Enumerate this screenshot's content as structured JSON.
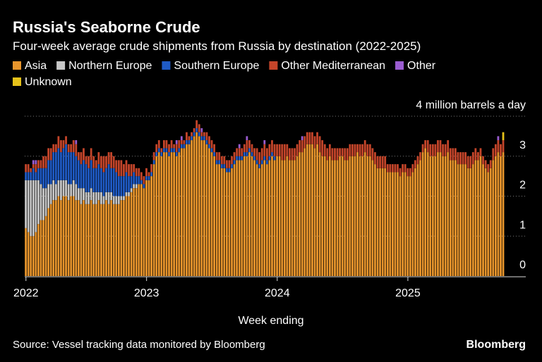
{
  "chart_data": {
    "type": "stacked_bar",
    "title": "Russia's Seaborne Crude",
    "subtitle": "Four-week average crude shipments from Russia by destination (2022-2025)",
    "x_label": "Week ending",
    "source": "Source: Vessel tracking data monitored by Bloomberg",
    "brand": "Bloomberg",
    "ylim": [
      0,
      4
    ],
    "yticks": [
      0,
      1,
      2,
      3,
      {
        "value": 4,
        "label": "4 million barrels a day"
      }
    ],
    "grid": true,
    "categories": [
      "2022",
      null,
      null,
      null,
      null,
      null,
      null,
      null,
      null,
      null,
      null,
      null,
      null,
      null,
      null,
      null,
      null,
      null,
      null,
      null,
      null,
      null,
      null,
      null,
      null,
      null,
      null,
      null,
      null,
      null,
      null,
      null,
      null,
      null,
      null,
      null,
      null,
      null,
      null,
      null,
      null,
      null,
      null,
      null,
      null,
      null,
      null,
      null,
      "2023",
      null,
      null,
      null,
      null,
      null,
      null,
      null,
      null,
      null,
      null,
      null,
      null,
      null,
      null,
      null,
      null,
      null,
      null,
      null,
      null,
      null,
      null,
      null,
      null,
      null,
      null,
      null,
      null,
      null,
      null,
      null,
      null,
      null,
      null,
      null,
      null,
      null,
      null,
      null,
      null,
      null,
      null,
      null,
      null,
      null,
      null,
      null,
      null,
      null,
      null,
      null,
      "2024",
      null,
      null,
      null,
      null,
      null,
      null,
      null,
      null,
      null,
      null,
      null,
      null,
      null,
      null,
      null,
      null,
      null,
      null,
      null,
      null,
      null,
      null,
      null,
      null,
      null,
      null,
      null,
      null,
      null,
      null,
      null,
      null,
      null,
      null,
      null,
      null,
      null,
      null,
      null,
      null,
      null,
      null,
      null,
      null,
      null,
      null,
      null,
      null,
      null,
      null,
      null,
      "2025",
      null,
      null,
      null,
      null,
      null,
      null,
      null,
      null,
      null,
      null,
      null,
      null,
      null,
      null,
      null,
      null,
      null,
      null,
      null,
      null,
      null,
      null,
      null,
      null,
      null,
      null,
      null,
      null,
      null,
      null,
      null,
      null,
      null,
      null,
      null,
      null,
      null,
      null
    ],
    "series": [
      {
        "name": "Asia",
        "color": "#e8952c",
        "values": [
          1.2,
          1.1,
          1.0,
          1.0,
          1.1,
          1.3,
          1.4,
          1.4,
          1.5,
          1.7,
          1.8,
          1.9,
          1.9,
          2.0,
          1.9,
          2.0,
          2.0,
          1.9,
          2.0,
          2.0,
          1.9,
          1.9,
          1.8,
          1.9,
          1.8,
          1.8,
          1.9,
          1.8,
          1.8,
          1.9,
          1.8,
          1.8,
          1.9,
          1.8,
          1.9,
          1.8,
          1.8,
          1.8,
          1.9,
          1.9,
          2.0,
          2.0,
          2.1,
          2.2,
          2.2,
          2.3,
          2.3,
          2.2,
          2.4,
          2.4,
          2.5,
          2.8,
          3.0,
          3.1,
          3.0,
          3.1,
          3.1,
          3.0,
          3.1,
          3.1,
          3.0,
          3.1,
          3.2,
          3.2,
          3.3,
          3.3,
          3.4,
          3.5,
          3.6,
          3.5,
          3.4,
          3.4,
          3.3,
          3.2,
          3.1,
          3.0,
          2.8,
          2.8,
          2.7,
          2.7,
          2.6,
          2.6,
          2.7,
          2.8,
          2.9,
          2.9,
          2.9,
          3.0,
          3.0,
          3.1,
          3.0,
          2.9,
          2.8,
          2.7,
          2.8,
          2.9,
          2.8,
          2.9,
          3.0,
          2.9,
          3.0,
          3.0,
          2.9,
          2.9,
          3.0,
          2.9,
          2.9,
          2.9,
          3.0,
          3.1,
          3.1,
          3.2,
          3.3,
          3.3,
          3.3,
          3.2,
          3.3,
          3.1,
          3.0,
          3.0,
          2.9,
          3.0,
          2.9,
          2.9,
          2.9,
          3.0,
          3.0,
          2.9,
          2.9,
          3.0,
          3.0,
          3.0,
          3.1,
          3.0,
          3.0,
          3.1,
          3.0,
          3.0,
          2.9,
          2.8,
          2.7,
          2.7,
          2.7,
          2.7,
          2.6,
          2.6,
          2.6,
          2.6,
          2.6,
          2.5,
          2.6,
          2.6,
          2.5,
          2.5,
          2.6,
          2.7,
          2.8,
          2.9,
          3.1,
          3.2,
          3.1,
          3.0,
          3.0,
          3.0,
          3.1,
          3.1,
          3.0,
          3.0,
          3.1,
          2.9,
          2.9,
          2.9,
          2.8,
          2.8,
          2.8,
          2.8,
          2.7,
          2.7,
          2.8,
          2.9,
          2.9,
          3.0,
          2.8,
          2.7,
          2.6,
          2.7,
          2.9,
          3.0,
          3.1,
          3.0,
          3.1
        ]
      },
      {
        "name": "Northern Europe",
        "color": "#c8c8c8",
        "values": [
          1.2,
          1.3,
          1.4,
          1.4,
          1.3,
          1.1,
          0.9,
          0.8,
          0.7,
          0.6,
          0.5,
          0.5,
          0.4,
          0.4,
          0.5,
          0.4,
          0.4,
          0.4,
          0.3,
          0.4,
          0.4,
          0.3,
          0.4,
          0.3,
          0.3,
          0.3,
          0.3,
          0.3,
          0.3,
          0.2,
          0.3,
          0.2,
          0.2,
          0.3,
          0.2,
          0.2,
          0.2,
          0.2,
          0.1,
          0.1,
          0.1,
          0.1,
          0.1,
          0.1,
          0.1,
          0,
          0,
          0,
          0,
          0,
          0,
          0,
          0,
          0,
          0,
          0,
          0,
          0,
          0,
          0,
          0,
          0,
          0,
          0,
          0,
          0,
          0,
          0,
          0,
          0,
          0,
          0,
          0,
          0,
          0,
          0,
          0,
          0,
          0,
          0,
          0,
          0,
          0,
          0,
          0,
          0,
          0,
          0,
          0,
          0,
          0,
          0,
          0,
          0,
          0,
          0,
          0,
          0,
          0,
          0,
          0,
          0,
          0,
          0,
          0,
          0,
          0,
          0,
          0,
          0,
          0,
          0,
          0,
          0,
          0,
          0,
          0,
          0,
          0,
          0,
          0,
          0,
          0,
          0,
          0,
          0,
          0,
          0,
          0,
          0,
          0,
          0,
          0,
          0,
          0,
          0,
          0,
          0,
          0,
          0,
          0,
          0,
          0,
          0,
          0,
          0,
          0,
          0,
          0,
          0,
          0,
          0,
          0,
          0,
          0,
          0,
          0,
          0,
          0,
          0,
          0,
          0,
          0,
          0,
          0,
          0,
          0,
          0,
          0,
          0,
          0,
          0,
          0,
          0,
          0,
          0,
          0,
          0,
          0,
          0,
          0,
          0,
          0,
          0,
          0,
          0,
          0,
          0,
          0,
          0,
          0
        ]
      },
      {
        "name": "Southern Europe",
        "color": "#1f5bc6",
        "values": [
          0.2,
          0.2,
          0.2,
          0.3,
          0.2,
          0.3,
          0.4,
          0.5,
          0.5,
          0.6,
          0.6,
          0.7,
          0.8,
          0.8,
          0.7,
          0.8,
          0.9,
          0.8,
          0.8,
          0.7,
          0.7,
          0.7,
          0.6,
          0.7,
          0.7,
          0.6,
          0.7,
          0.6,
          0.6,
          0.7,
          0.6,
          0.6,
          0.6,
          0.7,
          0.6,
          0.7,
          0.6,
          0.5,
          0.5,
          0.5,
          0.5,
          0.4,
          0.3,
          0.3,
          0.2,
          0.2,
          0.1,
          0.1,
          0.1,
          0.1,
          0.1,
          0.1,
          0.1,
          0.1,
          0.1,
          0.1,
          0.1,
          0.1,
          0.1,
          0.1,
          0.1,
          0.1,
          0.1,
          0.1,
          0.1,
          0.1,
          0.1,
          0.1,
          0.1,
          0.1,
          0.1,
          0.1,
          0.1,
          0.1,
          0.1,
          0.1,
          0.1,
          0.1,
          0.1,
          0.1,
          0.1,
          0.1,
          0.1,
          0.1,
          0.1,
          0.1,
          0.1,
          0.1,
          0.1,
          0.1,
          0.1,
          0.1,
          0.1,
          0.1,
          0.1,
          0.1,
          0.1,
          0.1,
          0.1,
          0.1,
          0,
          0,
          0,
          0,
          0,
          0,
          0,
          0,
          0,
          0,
          0,
          0,
          0,
          0,
          0,
          0,
          0,
          0,
          0,
          0,
          0,
          0,
          0,
          0,
          0,
          0,
          0,
          0,
          0,
          0,
          0,
          0,
          0,
          0,
          0,
          0,
          0,
          0,
          0,
          0,
          0,
          0,
          0,
          0,
          0,
          0,
          0,
          0,
          0,
          0,
          0,
          0,
          0,
          0,
          0,
          0,
          0,
          0,
          0,
          0,
          0,
          0,
          0,
          0,
          0,
          0,
          0,
          0,
          0,
          0,
          0,
          0,
          0,
          0,
          0,
          0,
          0,
          0,
          0,
          0,
          0,
          0,
          0,
          0,
          0,
          0,
          0,
          0,
          0,
          0,
          0
        ]
      },
      {
        "name": "Other Mediterranean",
        "color": "#c4452a",
        "values": [
          0.2,
          0.2,
          0.1,
          0.1,
          0.2,
          0.2,
          0.2,
          0.3,
          0.3,
          0.3,
          0.3,
          0.2,
          0.2,
          0.3,
          0.3,
          0.2,
          0.2,
          0.2,
          0.2,
          0.3,
          0.3,
          0.2,
          0.3,
          0.3,
          0.2,
          0.3,
          0.3,
          0.3,
          0.2,
          0.3,
          0.3,
          0.4,
          0.3,
          0.3,
          0.4,
          0.3,
          0.3,
          0.4,
          0.4,
          0.3,
          0.3,
          0.3,
          0.3,
          0.2,
          0.2,
          0.2,
          0.2,
          0.2,
          0.2,
          0.1,
          0.2,
          0.2,
          0.2,
          0.2,
          0.1,
          0.2,
          0.2,
          0.2,
          0.2,
          0.1,
          0.2,
          0.2,
          0.1,
          0.1,
          0.2,
          0.1,
          0.1,
          0.1,
          0.2,
          0.2,
          0.1,
          0.1,
          0.2,
          0.2,
          0.2,
          0.2,
          0.2,
          0.2,
          0.2,
          0.2,
          0.2,
          0.2,
          0.2,
          0.2,
          0.2,
          0.2,
          0.2,
          0.2,
          0.3,
          0.2,
          0.2,
          0.2,
          0.3,
          0.3,
          0.3,
          0.3,
          0.3,
          0.3,
          0.3,
          0.3,
          0.3,
          0.3,
          0.4,
          0.4,
          0.3,
          0.3,
          0.3,
          0.3,
          0.3,
          0.3,
          0.3,
          0.3,
          0.3,
          0.3,
          0.3,
          0.3,
          0.3,
          0.4,
          0.4,
          0.3,
          0.3,
          0.3,
          0.3,
          0.3,
          0.3,
          0.2,
          0.2,
          0.3,
          0.3,
          0.3,
          0.3,
          0.3,
          0.2,
          0.3,
          0.3,
          0.3,
          0.3,
          0.3,
          0.3,
          0.3,
          0.3,
          0.3,
          0.3,
          0.3,
          0.2,
          0.2,
          0.2,
          0.2,
          0.2,
          0.2,
          0.2,
          0.2,
          0.2,
          0.2,
          0.2,
          0.2,
          0.2,
          0.2,
          0.2,
          0.2,
          0.3,
          0.3,
          0.3,
          0.3,
          0.3,
          0.3,
          0.3,
          0.3,
          0.3,
          0.3,
          0.3,
          0.3,
          0.3,
          0.3,
          0.3,
          0.3,
          0.3,
          0.3,
          0.3,
          0.3,
          0.2,
          0.2,
          0.2,
          0.2,
          0.2,
          0.2,
          0.3,
          0.3,
          0.3,
          0.3,
          0.3
        ]
      },
      {
        "name": "Other",
        "color": "#9a5cd0",
        "values": [
          0,
          0,
          0,
          0.1,
          0.1,
          0,
          0,
          0,
          0,
          0,
          0,
          0,
          0,
          0,
          0,
          0,
          0,
          0,
          0,
          0,
          0.1,
          0,
          0,
          0,
          0,
          0,
          0,
          0,
          0,
          0,
          0,
          0,
          0,
          0,
          0,
          0,
          0,
          0,
          0,
          0,
          0,
          0,
          0,
          0,
          0,
          0,
          0,
          0,
          0,
          0,
          0,
          0,
          0,
          0,
          0,
          0,
          0,
          0,
          0,
          0,
          0.1,
          0,
          0.1,
          0,
          0,
          0,
          0,
          0,
          0,
          0,
          0.1,
          0,
          0,
          0,
          0,
          0,
          0,
          0,
          0,
          0,
          0,
          0,
          0,
          0,
          0,
          0.1,
          0,
          0,
          0.1,
          0,
          0,
          0,
          0,
          0,
          0,
          0.1,
          0,
          0,
          0,
          0,
          0,
          0,
          0,
          0,
          0,
          0,
          0,
          0,
          0,
          0,
          0.1,
          0,
          0,
          0,
          0,
          0,
          0,
          0,
          0,
          0,
          0,
          0,
          0,
          0,
          0,
          0,
          0,
          0,
          0,
          0,
          0,
          0,
          0,
          0,
          0,
          0,
          0,
          0,
          0,
          0,
          0,
          0,
          0,
          0,
          0,
          0,
          0,
          0,
          0,
          0,
          0,
          0,
          0,
          0,
          0,
          0,
          0,
          0,
          0,
          0,
          0,
          0,
          0,
          0,
          0,
          0,
          0,
          0,
          0,
          0,
          0,
          0,
          0,
          0,
          0,
          0,
          0,
          0,
          0,
          0,
          0,
          0,
          0,
          0,
          0,
          0,
          0,
          0,
          0.1,
          0,
          0
        ]
      },
      {
        "name": "Unknown",
        "color": "#e6c21a",
        "values": [
          0,
          0,
          0,
          0,
          0,
          0,
          0,
          0,
          0,
          0,
          0,
          0,
          0,
          0,
          0,
          0,
          0,
          0,
          0,
          0,
          0,
          0,
          0,
          0,
          0,
          0,
          0,
          0,
          0,
          0,
          0,
          0,
          0,
          0,
          0,
          0,
          0,
          0,
          0,
          0,
          0,
          0,
          0,
          0,
          0,
          0,
          0,
          0,
          0,
          0,
          0,
          0,
          0,
          0,
          0,
          0,
          0,
          0,
          0,
          0,
          0,
          0,
          0,
          0,
          0,
          0,
          0,
          0,
          0,
          0,
          0,
          0,
          0,
          0,
          0,
          0,
          0,
          0,
          0,
          0,
          0,
          0,
          0,
          0,
          0,
          0,
          0,
          0,
          0,
          0,
          0,
          0,
          0,
          0,
          0,
          0,
          0,
          0,
          0,
          0,
          0,
          0,
          0,
          0,
          0,
          0,
          0,
          0,
          0,
          0,
          0,
          0,
          0,
          0,
          0,
          0,
          0,
          0,
          0,
          0,
          0,
          0,
          0,
          0,
          0,
          0,
          0,
          0,
          0,
          0,
          0,
          0,
          0,
          0,
          0,
          0,
          0,
          0,
          0,
          0,
          0,
          0,
          0,
          0,
          0,
          0,
          0,
          0,
          0,
          0,
          0,
          0,
          0,
          0,
          0,
          0,
          0,
          0,
          0,
          0,
          0,
          0,
          0,
          0,
          0,
          0,
          0,
          0,
          0,
          0,
          0,
          0,
          0,
          0,
          0,
          0,
          0,
          0,
          0,
          0,
          0,
          0,
          0,
          0,
          0,
          0,
          0,
          0,
          0,
          0,
          0.2
        ]
      }
    ]
  }
}
